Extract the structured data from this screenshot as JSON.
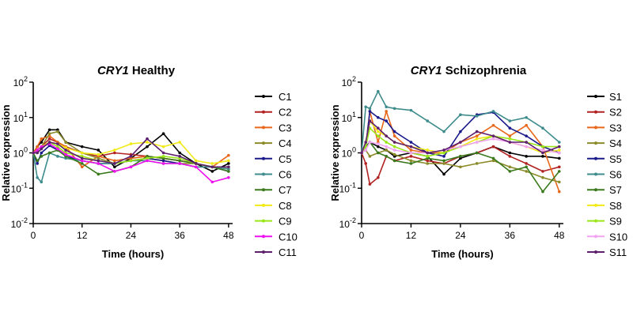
{
  "chart_data": [
    {
      "type": "line",
      "title_gene": "CRY1",
      "title_rest": " Healthy",
      "xlabel": "Time (hours)",
      "ylabel": "Relative expression",
      "yscale": "log",
      "ylim_exp": [
        -2,
        2
      ],
      "xlim": [
        0,
        49
      ],
      "xticks": [
        0,
        12,
        24,
        36,
        48
      ],
      "yticks": [
        {
          "exp": -2,
          "base": "10",
          "sup": "-2"
        },
        {
          "exp": -1,
          "base": "10",
          "sup": "-1"
        },
        {
          "exp": 0,
          "base": "10",
          "sup": "0"
        },
        {
          "exp": 1,
          "base": "10",
          "sup": "1"
        },
        {
          "exp": 2,
          "base": "10",
          "sup": "2"
        }
      ],
      "x": [
        0,
        1,
        2,
        4,
        6,
        8,
        12,
        16,
        20,
        24,
        28,
        32,
        36,
        40,
        44,
        48
      ],
      "series": [
        {
          "name": "C1",
          "color": "#000000",
          "values": [
            1.0,
            1.5,
            2.0,
            4.5,
            4.5,
            2.0,
            1.5,
            1.2,
            0.4,
            0.7,
            1.5,
            3.5,
            1.0,
            0.5,
            0.3,
            0.5
          ]
        },
        {
          "name": "C2",
          "color": "#b22222",
          "values": [
            1.0,
            1.2,
            1.5,
            2.5,
            2.0,
            1.5,
            1.0,
            0.8,
            1.0,
            0.9,
            0.8,
            0.7,
            0.6,
            0.5,
            0.4,
            0.4
          ]
        },
        {
          "name": "C3",
          "color": "#e8671a",
          "values": [
            1.0,
            1.5,
            2.5,
            3.0,
            2.0,
            1.5,
            0.4,
            0.8,
            0.6,
            0.7,
            0.8,
            0.7,
            0.6,
            0.5,
            0.4,
            0.85
          ]
        },
        {
          "name": "C4",
          "color": "#8b8b2a",
          "values": [
            1.0,
            1.2,
            1.5,
            3.5,
            4.0,
            2.0,
            1.0,
            0.7,
            0.5,
            0.6,
            0.7,
            0.6,
            0.5,
            0.5,
            0.4,
            0.35
          ]
        },
        {
          "name": "C5",
          "color": "#1a1a8c",
          "values": [
            1.0,
            0.5,
            1.0,
            1.6,
            1.2,
            0.8,
            0.6,
            0.5,
            0.5,
            0.6,
            0.7,
            0.6,
            0.5,
            0.4,
            0.4,
            0.3
          ]
        },
        {
          "name": "C6",
          "color": "#3f8c8c",
          "values": [
            1.0,
            0.2,
            0.15,
            1.0,
            0.8,
            0.7,
            0.6,
            0.5,
            0.5,
            0.6,
            0.6,
            0.5,
            0.5,
            0.4,
            0.4,
            0.35
          ]
        },
        {
          "name": "C7",
          "color": "#3a7a1c",
          "values": [
            1.0,
            0.6,
            0.8,
            1.0,
            1.2,
            0.8,
            0.5,
            0.25,
            0.3,
            0.4,
            0.8,
            0.7,
            0.6,
            0.5,
            0.4,
            0.3
          ]
        },
        {
          "name": "C8",
          "color": "#f2ea16",
          "values": [
            1.0,
            1.2,
            1.5,
            2.0,
            1.8,
            1.4,
            1.0,
            0.9,
            1.2,
            1.8,
            2.0,
            1.5,
            2.0,
            0.6,
            0.5,
            0.6
          ]
        },
        {
          "name": "C9",
          "color": "#9ae619",
          "values": [
            1.0,
            1.0,
            1.3,
            2.0,
            1.5,
            1.0,
            0.8,
            0.6,
            0.5,
            0.6,
            0.7,
            0.8,
            0.7,
            0.5,
            0.4,
            0.4
          ]
        },
        {
          "name": "C10",
          "color": "#ee10ee",
          "values": [
            1.0,
            1.2,
            1.5,
            1.8,
            1.3,
            0.9,
            0.6,
            0.5,
            0.3,
            0.4,
            0.6,
            0.5,
            0.5,
            0.4,
            0.15,
            0.2
          ]
        },
        {
          "name": "C11",
          "color": "#5e1e6e",
          "values": [
            1.0,
            1.0,
            1.3,
            2.0,
            1.8,
            1.2,
            0.7,
            0.6,
            0.5,
            0.8,
            2.5,
            1.0,
            0.8,
            0.5,
            0.4,
            0.4
          ]
        }
      ]
    },
    {
      "type": "line",
      "title_gene": "CRY1",
      "title_rest": " Schizophrenia",
      "xlabel": "Time (hours)",
      "ylabel": "Relative expression",
      "yscale": "log",
      "ylim_exp": [
        -2,
        2
      ],
      "xlim": [
        0,
        49
      ],
      "xticks": [
        0,
        12,
        24,
        36,
        48
      ],
      "yticks": [
        {
          "exp": -2,
          "base": "10",
          "sup": "-2"
        },
        {
          "exp": -1,
          "base": "10",
          "sup": "-1"
        },
        {
          "exp": 0,
          "base": "10",
          "sup": "0"
        },
        {
          "exp": 1,
          "base": "10",
          "sup": "1"
        },
        {
          "exp": 2,
          "base": "10",
          "sup": "2"
        }
      ],
      "x": [
        0,
        1,
        2,
        4,
        6,
        8,
        12,
        16,
        20,
        24,
        28,
        32,
        36,
        40,
        44,
        48
      ],
      "series": [
        {
          "name": "S1",
          "color": "#000000",
          "values": [
            1.0,
            1.5,
            2.0,
            1.5,
            1.2,
            0.8,
            1.0,
            0.8,
            0.25,
            0.7,
            1.0,
            1.5,
            1.0,
            0.8,
            0.8,
            0.7
          ]
        },
        {
          "name": "S2",
          "color": "#b22222",
          "values": [
            1.0,
            0.5,
            0.13,
            0.2,
            0.8,
            0.6,
            0.8,
            0.6,
            0.5,
            0.8,
            1.0,
            1.5,
            0.8,
            0.5,
            0.3,
            0.4
          ]
        },
        {
          "name": "S3",
          "color": "#e8671a",
          "values": [
            1.0,
            1.5,
            15.0,
            2.0,
            15.0,
            3.0,
            1.2,
            1.0,
            1.0,
            2.0,
            3.0,
            6.0,
            3.0,
            6.0,
            1.5,
            0.08
          ]
        },
        {
          "name": "S4",
          "color": "#8b8b2a",
          "values": [
            1.0,
            1.2,
            0.8,
            1.0,
            1.2,
            0.9,
            0.6,
            0.5,
            0.5,
            0.4,
            0.5,
            0.6,
            0.4,
            0.3,
            0.2,
            0.15
          ]
        },
        {
          "name": "S5",
          "color": "#1a1a8c",
          "values": [
            1.0,
            1.5,
            15.0,
            10.0,
            8.0,
            4.0,
            2.0,
            1.0,
            0.8,
            4.0,
            12.0,
            14.0,
            5.0,
            3.0,
            1.5,
            1.0
          ]
        },
        {
          "name": "S6",
          "color": "#3f8c8c",
          "values": [
            1.0,
            20.0,
            18.0,
            55.0,
            20.0,
            18.0,
            16.0,
            8.0,
            4.0,
            12.0,
            11.0,
            15.0,
            8.0,
            10.0,
            5.0,
            2.0
          ]
        },
        {
          "name": "S7",
          "color": "#3a7a1c",
          "values": [
            1.0,
            1.5,
            2.0,
            1.0,
            0.8,
            0.6,
            0.5,
            0.7,
            0.6,
            0.8,
            1.0,
            0.7,
            0.3,
            0.4,
            0.08,
            0.3
          ]
        },
        {
          "name": "S8",
          "color": "#f2ea16",
          "values": [
            1.0,
            2.0,
            8.0,
            4.0,
            3.0,
            2.0,
            1.5,
            1.2,
            1.0,
            1.5,
            2.5,
            3.0,
            2.0,
            1.5,
            1.0,
            1.2
          ]
        },
        {
          "name": "S9",
          "color": "#9ae619",
          "values": [
            1.0,
            1.5,
            5.0,
            3.0,
            2.0,
            1.5,
            1.0,
            0.8,
            1.0,
            1.5,
            2.0,
            3.0,
            2.5,
            2.0,
            1.5,
            1.5
          ]
        },
        {
          "name": "S10",
          "color": "#f2a3f2",
          "values": [
            1.0,
            1.2,
            2.0,
            1.8,
            1.5,
            1.2,
            1.0,
            1.0,
            1.2,
            1.5,
            2.0,
            2.5,
            2.0,
            1.5,
            1.2,
            1.0
          ]
        },
        {
          "name": "S11",
          "color": "#5e1e6e",
          "values": [
            1.0,
            2.0,
            8.0,
            5.0,
            3.0,
            2.0,
            1.5,
            1.0,
            1.2,
            2.0,
            4.0,
            3.0,
            2.0,
            2.0,
            1.0,
            1.5
          ]
        }
      ]
    }
  ]
}
